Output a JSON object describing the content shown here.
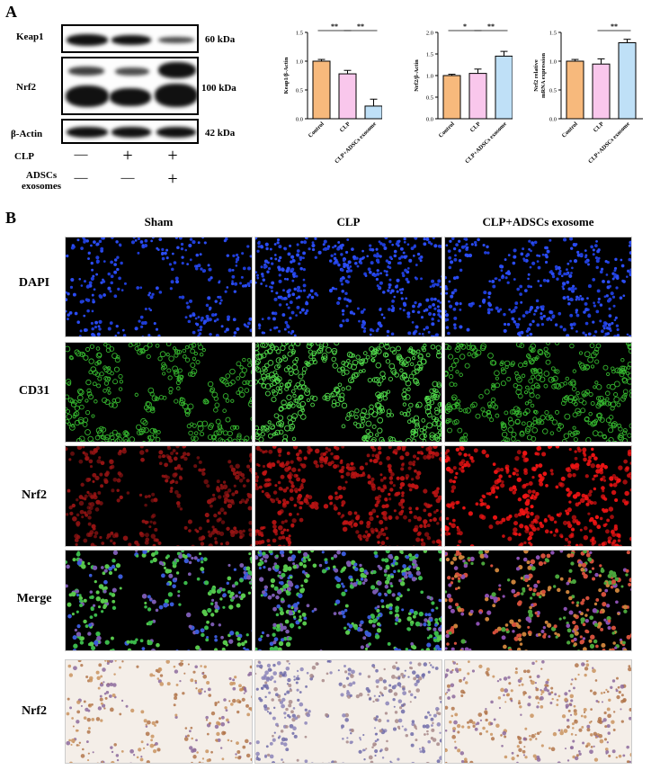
{
  "panel_a": {
    "letter": "A",
    "blots": [
      {
        "label": "Keap1",
        "kda": "60 kDa"
      },
      {
        "label": "Nrf2",
        "kda": "100 kDa"
      },
      {
        "label": "β-Actin",
        "kda": "42 kDa"
      }
    ],
    "treatments": [
      {
        "label": "CLP",
        "signs": [
          "—",
          "+",
          "+"
        ]
      },
      {
        "label": "ADSCs\nexosomes",
        "signs": [
          "—",
          "—",
          "+"
        ]
      }
    ]
  },
  "chart_data": [
    {
      "type": "bar",
      "categories": [
        "Control",
        "CLP",
        "CLP+ADSCs exosome"
      ],
      "values": [
        1.0,
        0.78,
        0.22
      ],
      "errors": [
        0.03,
        0.06,
        0.12
      ],
      "ylabel": "Keap1/β-Actin",
      "ylim": [
        0,
        1.5
      ],
      "yticks": [
        "0.0",
        "0.5",
        "1.0",
        "1.5"
      ],
      "colors": [
        "#f7b97c",
        "#f9c7ec",
        "#bfe0f7"
      ],
      "significance": [
        {
          "from": 0,
          "to": 1,
          "label": "**"
        },
        {
          "from": 1,
          "to": 2,
          "label": "**"
        }
      ]
    },
    {
      "type": "bar",
      "categories": [
        "Control",
        "CLP",
        "CLP+ADSCs exosome"
      ],
      "values": [
        1.0,
        1.05,
        1.45
      ],
      "errors": [
        0.03,
        0.1,
        0.11
      ],
      "ylabel": "Nrf2/β-Actin",
      "ylim": [
        0,
        2.0
      ],
      "yticks": [
        "0.0",
        "0.5",
        "1.0",
        "1.5",
        "2.0"
      ],
      "colors": [
        "#f7b97c",
        "#f9c7ec",
        "#bfe0f7"
      ],
      "significance": [
        {
          "from": 0,
          "to": 1,
          "label": "*"
        },
        {
          "from": 1,
          "to": 2,
          "label": "**"
        }
      ]
    },
    {
      "type": "bar",
      "categories": [
        "Control",
        "CLP",
        "CLP+ADSCs exosome"
      ],
      "values": [
        1.0,
        0.95,
        1.32
      ],
      "errors": [
        0.03,
        0.09,
        0.06
      ],
      "ylabel": "Nrf2 relative\nmRNA expression",
      "ylim": [
        0,
        1.5
      ],
      "yticks": [
        "0.0",
        "0.5",
        "1.0",
        "1.5"
      ],
      "colors": [
        "#f7b97c",
        "#f9c7ec",
        "#bfe0f7"
      ],
      "significance": [
        {
          "from": 1,
          "to": 2,
          "label": "**"
        }
      ]
    }
  ],
  "panel_b": {
    "letter": "B",
    "columns": [
      "Sham",
      "CLP",
      "CLP+ADSCs exosome"
    ],
    "rows": [
      "DAPI",
      "CD31",
      "Nrf2",
      "Merge",
      "Nrf2"
    ]
  }
}
